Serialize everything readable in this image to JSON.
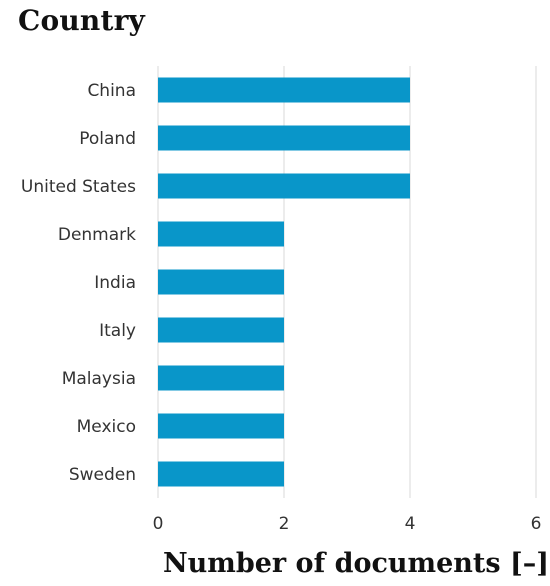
{
  "chart_data": {
    "type": "bar",
    "orientation": "horizontal",
    "title": "Country",
    "xlabel": "Number of documents [–]",
    "ylabel": "",
    "categories": [
      "China",
      "Poland",
      "United States",
      "Denmark",
      "India",
      "Italy",
      "Malaysia",
      "Mexico",
      "Sweden"
    ],
    "values": [
      4,
      4,
      4,
      2,
      2,
      2,
      2,
      2,
      2
    ],
    "xlim": [
      0,
      6
    ],
    "xticks": [
      "0",
      "2",
      "4",
      "6"
    ],
    "grid": true,
    "legend": "none",
    "bar_color": "#0996c9",
    "grid_color": "#d9d9d9",
    "label_color": "#333333"
  }
}
